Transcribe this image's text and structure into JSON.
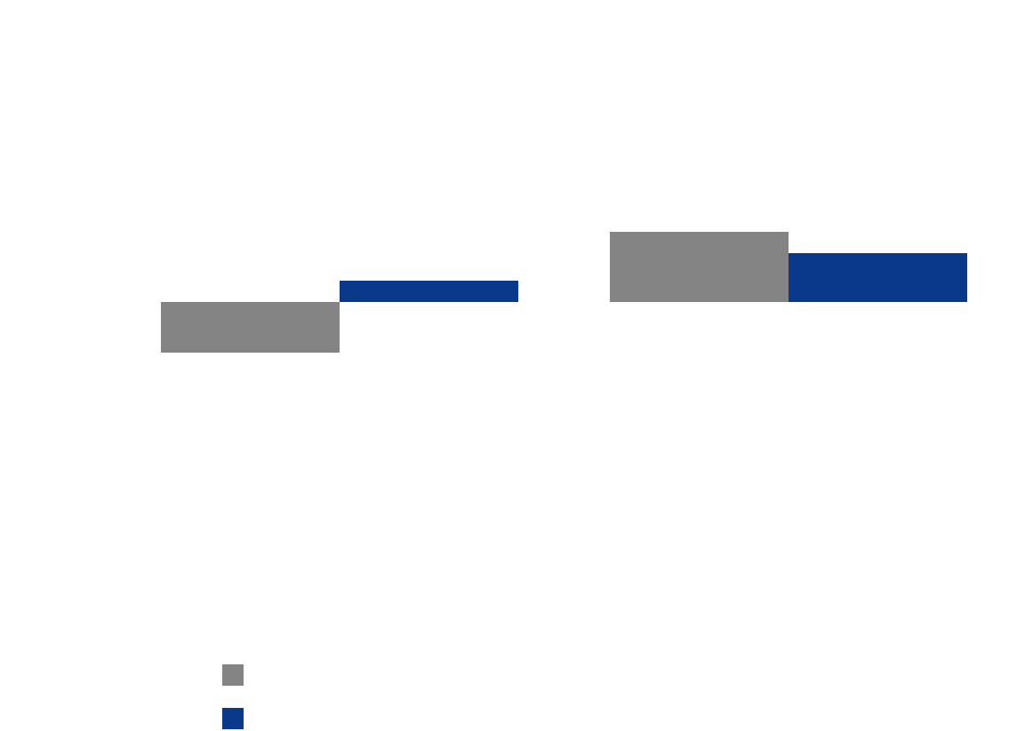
{
  "chart_data": {
    "type": "bar",
    "categories": [
      null,
      null
    ],
    "series": [
      {
        "color": "#848484",
        "values": [
          -57,
          79
        ]
      },
      {
        "color": "#0a398c",
        "values": [
          24,
          55
        ]
      }
    ],
    "ylim": [
      -180,
      180
    ],
    "grid": false
  }
}
